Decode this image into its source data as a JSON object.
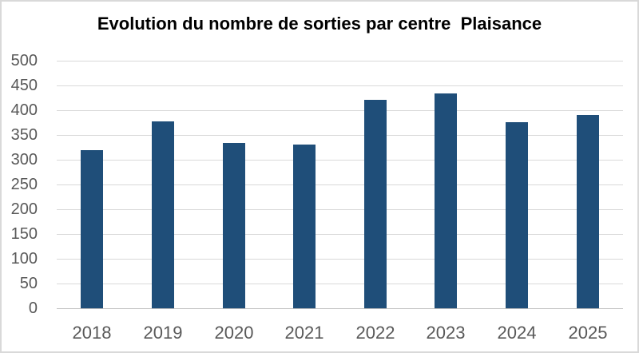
{
  "window": {
    "background_color": "#ffffff",
    "border_color": "#d9d9d9"
  },
  "chart_data": {
    "type": "bar",
    "title": "Evolution du nombre de sorties par centre  Plaisance",
    "categories": [
      "2018",
      "2019",
      "2020",
      "2021",
      "2022",
      "2023",
      "2024",
      "2025"
    ],
    "values": [
      320,
      378,
      334,
      330,
      421,
      434,
      376,
      391
    ],
    "xlabel": "",
    "ylabel": "",
    "ylim": [
      0,
      500
    ],
    "ytick_step": 50,
    "ytick_labels": [
      "0",
      "50",
      "100",
      "150",
      "200",
      "250",
      "300",
      "350",
      "400",
      "450",
      "500"
    ],
    "grid": "horizontal",
    "legend": "none",
    "bar_color": "#1f4e79",
    "gridline_color": "#d9d9d9",
    "axis_line_color": "#bfbfbf",
    "tick_label_color": "#595959",
    "title_color": "#000000"
  }
}
